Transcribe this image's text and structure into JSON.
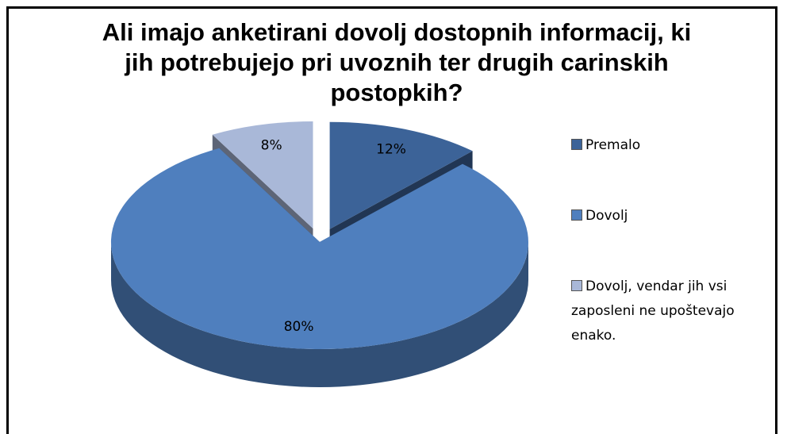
{
  "chart_data": {
    "type": "pie3d",
    "title": "Ali imajo anketirani dovolj dostopnih informacij, ki jih potrebujejo pri uvoznih ter drugih carinskih postopkih?",
    "categories": [
      "Premalo",
      "Dovolj",
      "Dovolj, vendar jih vsi zaposleni ne upoštevajo enako."
    ],
    "values": [
      12,
      80,
      8
    ],
    "value_labels": [
      "12%",
      "80%",
      "8%"
    ],
    "colors": [
      "#3c6398",
      "#4f7fbe",
      "#a9b8d8"
    ],
    "legend": "right"
  }
}
